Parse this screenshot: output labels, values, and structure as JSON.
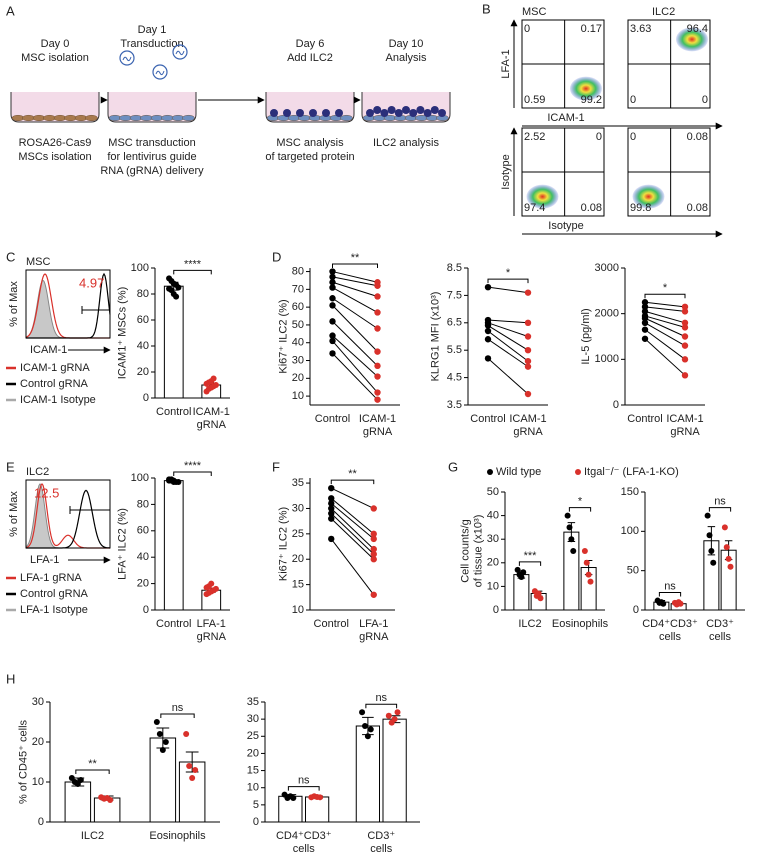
{
  "panels": [
    "A",
    "B",
    "C",
    "D",
    "E",
    "F",
    "G",
    "H"
  ],
  "schematic": {
    "steps": [
      {
        "day": "Day 0",
        "title": "MSC isolation",
        "caption": [
          "ROSA26-Cas9",
          "MSCs isolation"
        ]
      },
      {
        "day": "Day 1",
        "title": "Transduction",
        "caption": [
          "MSC transduction",
          "for lentivirus guide",
          "RNA (gRNA) delivery"
        ]
      },
      {
        "day": "Day 6",
        "title": "Add ILC2",
        "caption": [
          "MSC analysis",
          "of targeted protein"
        ]
      },
      {
        "day": "Day 10",
        "title": "Analysis",
        "caption": [
          "ILC2 analysis"
        ]
      }
    ]
  },
  "flow": {
    "titles": [
      "MSC",
      "ILC2"
    ],
    "rows": [
      {
        "ylabel": "LFA-1",
        "xlabel": "ICAM-1",
        "quadrants": [
          [
            0,
            0.17,
            0.59,
            99.2
          ],
          [
            3.63,
            96.4,
            0,
            0
          ]
        ]
      },
      {
        "ylabel": "Isotype",
        "xlabel": "Isotype",
        "quadrants": [
          [
            2.52,
            0,
            97.4,
            0.08
          ],
          [
            0,
            0.08,
            99.8,
            0.08
          ]
        ]
      }
    ]
  },
  "histograms": [
    {
      "title": "MSC",
      "ylabel": "% of Max",
      "xlabel": "ICAM-1",
      "gate": 4.97,
      "legend": [
        "ICAM-1 gRNA",
        "Control gRNA",
        "ICAM-1 Isotype"
      ]
    },
    {
      "title": "ILC2",
      "ylabel": "% of Max",
      "xlabel": "LFA-1",
      "gate": 12.5,
      "legend": [
        "LFA-1 gRNA",
        "Control gRNA",
        "LFA-1 Isotype"
      ]
    }
  ],
  "chart_data": [
    {
      "type": "bar",
      "ylabel": [
        "ICAM1⁺ MSCs (%)"
      ],
      "categories": [
        [
          "Control"
        ],
        [
          "ICAM-1",
          "gRNA"
        ]
      ],
      "colors": [
        "#000000",
        "#d9312b"
      ],
      "values": [
        86,
        10
      ],
      "errors": [
        3,
        1.5
      ],
      "points": [
        [
          92,
          90,
          88,
          87,
          85,
          84,
          83,
          80,
          78
        ],
        [
          5,
          7,
          8,
          9,
          10,
          11,
          12,
          13,
          15
        ]
      ],
      "ylim": [
        0,
        100
      ],
      "yticks": [
        0,
        20,
        40,
        60,
        80,
        100
      ],
      "annotations": [
        "****"
      ]
    },
    {
      "type": "line",
      "ylabel": [
        "Ki67⁺ ILC2 (%)"
      ],
      "categories": [
        [
          "Control"
        ],
        [
          "ICAM-1",
          "gRNA"
        ]
      ],
      "colors": [
        "#000000",
        "#d9312b"
      ],
      "values": [
        [
          80,
          77,
          74,
          71,
          65,
          61,
          52,
          44,
          41,
          34
        ],
        [
          74,
          72,
          66,
          57,
          48,
          35,
          27,
          21,
          12,
          8
        ]
      ],
      "ylim": [
        5,
        82
      ],
      "yticks": [
        10,
        20,
        30,
        40,
        50,
        60,
        70,
        80
      ],
      "annotations": [
        "**"
      ]
    },
    {
      "type": "line",
      "ylabel": [
        "KLRG1 MFI (x10³)"
      ],
      "categories": [
        [
          "Control"
        ],
        [
          "ICAM-1",
          "gRNA"
        ]
      ],
      "colors": [
        "#000000",
        "#d9312b"
      ],
      "values": [
        [
          7.8,
          6.6,
          6.5,
          6.4,
          6.2,
          5.9,
          5.2
        ],
        [
          7.6,
          6.5,
          6.0,
          5.5,
          5.1,
          4.9,
          3.9
        ]
      ],
      "ylim": [
        3.5,
        8.5
      ],
      "yticks": [
        3.5,
        4.5,
        5.5,
        6.5,
        7.5,
        8.5
      ],
      "annotations": [
        "*"
      ]
    },
    {
      "type": "line",
      "ylabel": [
        "IL-5 (pg/ml)"
      ],
      "categories": [
        [
          "Control"
        ],
        [
          "ICAM-1",
          "gRNA"
        ]
      ],
      "colors": [
        "#000000",
        "#d9312b"
      ],
      "values": [
        [
          2250,
          2150,
          2050,
          1950,
          1900,
          1800,
          1650,
          1450
        ],
        [
          2150,
          2050,
          1800,
          1700,
          1500,
          1300,
          1000,
          650
        ]
      ],
      "ylim": [
        0,
        3000
      ],
      "yticks": [
        0,
        1000,
        2000,
        3000
      ],
      "annotations": [
        "*"
      ]
    },
    {
      "type": "bar",
      "ylabel": [
        "LFA⁺ ILC2 (%)"
      ],
      "categories": [
        [
          "Control"
        ],
        [
          "LFA-1",
          "gRNA"
        ]
      ],
      "colors": [
        "#000000",
        "#d9312b"
      ],
      "values": [
        98,
        15
      ],
      "errors": [
        0.5,
        1.5
      ],
      "points": [
        [
          99,
          98,
          98,
          97,
          97,
          98,
          99,
          97
        ],
        [
          12,
          13,
          14,
          15,
          16,
          17,
          18,
          20
        ]
      ],
      "ylim": [
        0,
        100
      ],
      "yticks": [
        0,
        20,
        40,
        60,
        80,
        100
      ],
      "annotations": [
        "****"
      ]
    },
    {
      "type": "line",
      "ylabel": [
        "Ki67⁺ ILC2 (%)"
      ],
      "categories": [
        [
          "Control"
        ],
        [
          "LFA-1",
          "gRNA"
        ]
      ],
      "colors": [
        "#000000",
        "#d9312b"
      ],
      "values": [
        [
          34,
          32,
          31,
          30,
          29,
          28,
          24
        ],
        [
          30,
          25,
          24,
          22,
          21,
          20,
          13
        ]
      ],
      "ylim": [
        10,
        36
      ],
      "yticks": [
        10,
        15,
        20,
        25,
        30,
        35
      ],
      "annotations": [
        "**"
      ]
    },
    {
      "type": "bar",
      "ylabel": [
        "Cell counts/g",
        "of tissue (x10³)"
      ],
      "categories": [
        [
          "ILC2"
        ],
        [
          "Eosinophils"
        ]
      ],
      "series": [
        {
          "name": "Wild type",
          "color": "#000000",
          "values": [
            15,
            33
          ],
          "errors": [
            1.5,
            4
          ],
          "points": [
            [
              17,
              15,
              14,
              16
            ],
            [
              40,
              35,
              30,
              25
            ]
          ]
        },
        {
          "name": "Itgal⁻/⁻ (LFA-1-KO)",
          "color": "#d9312b",
          "values": [
            7,
            18
          ],
          "errors": [
            1,
            3
          ],
          "points": [
            [
              8,
              6,
              7,
              5
            ],
            [
              25,
              20,
              15,
              12
            ]
          ]
        }
      ],
      "ylim": [
        0,
        50
      ],
      "yticks": [
        0,
        10,
        20,
        30,
        40,
        50
      ],
      "annotations": [
        "***",
        "*"
      ]
    },
    {
      "type": "bar",
      "ylabel": [],
      "categories": [
        [
          "CD4⁺CD3⁺",
          "cells"
        ],
        [
          "CD3⁺",
          "cells"
        ]
      ],
      "series": [
        {
          "color": "#000000",
          "values": [
            10,
            88
          ],
          "errors": [
            2,
            18
          ],
          "points": [
            [
              12,
              9,
              10,
              8
            ],
            [
              120,
              95,
              75,
              60
            ]
          ]
        },
        {
          "color": "#d9312b",
          "values": [
            8,
            76
          ],
          "errors": [
            1.5,
            12
          ],
          "points": [
            [
              9,
              7,
              10,
              8
            ],
            [
              105,
              80,
              65,
              55
            ]
          ]
        }
      ],
      "ylim": [
        0,
        150
      ],
      "yticks": [
        0,
        50,
        100,
        150
      ],
      "annotations": [
        "ns",
        "ns"
      ]
    },
    {
      "type": "bar",
      "ylabel": [
        "% of CD45⁺ cells"
      ],
      "categories": [
        [
          "ILC2"
        ],
        [
          "Eosinophils"
        ]
      ],
      "series": [
        {
          "color": "#000000",
          "values": [
            10,
            21
          ],
          "errors": [
            1,
            2.5
          ],
          "points": [
            [
              11,
              10,
              9.5,
              10.5
            ],
            [
              25,
              22,
              18,
              20
            ]
          ]
        },
        {
          "color": "#d9312b",
          "values": [
            6,
            15
          ],
          "errors": [
            0.5,
            2.5
          ],
          "points": [
            [
              6.2,
              5.8,
              6,
              5.5
            ],
            [
              22,
              14,
              11,
              13
            ]
          ]
        }
      ],
      "ylim": [
        0,
        30
      ],
      "yticks": [
        0,
        10,
        20,
        30
      ],
      "annotations": [
        "**",
        "ns"
      ]
    },
    {
      "type": "bar",
      "ylabel": [],
      "categories": [
        [
          "CD4⁺CD3⁺",
          "cells"
        ],
        [
          "CD3⁺",
          "cells"
        ]
      ],
      "series": [
        {
          "color": "#000000",
          "values": [
            7.5,
            28
          ],
          "errors": [
            0.5,
            2.5
          ],
          "points": [
            [
              8,
              7,
              7.5,
              7
            ],
            [
              32,
              28,
              25,
              27
            ]
          ]
        },
        {
          "color": "#d9312b",
          "values": [
            7.3,
            30
          ],
          "errors": [
            0.3,
            1
          ],
          "points": [
            [
              7.2,
              7.5,
              7.3,
              7.2
            ],
            [
              31,
              29,
              30,
              32
            ]
          ]
        }
      ],
      "ylim": [
        0,
        35
      ],
      "yticks": [
        0,
        5,
        10,
        15,
        20,
        25,
        30,
        35
      ],
      "annotations": [
        "ns",
        "ns"
      ]
    }
  ]
}
